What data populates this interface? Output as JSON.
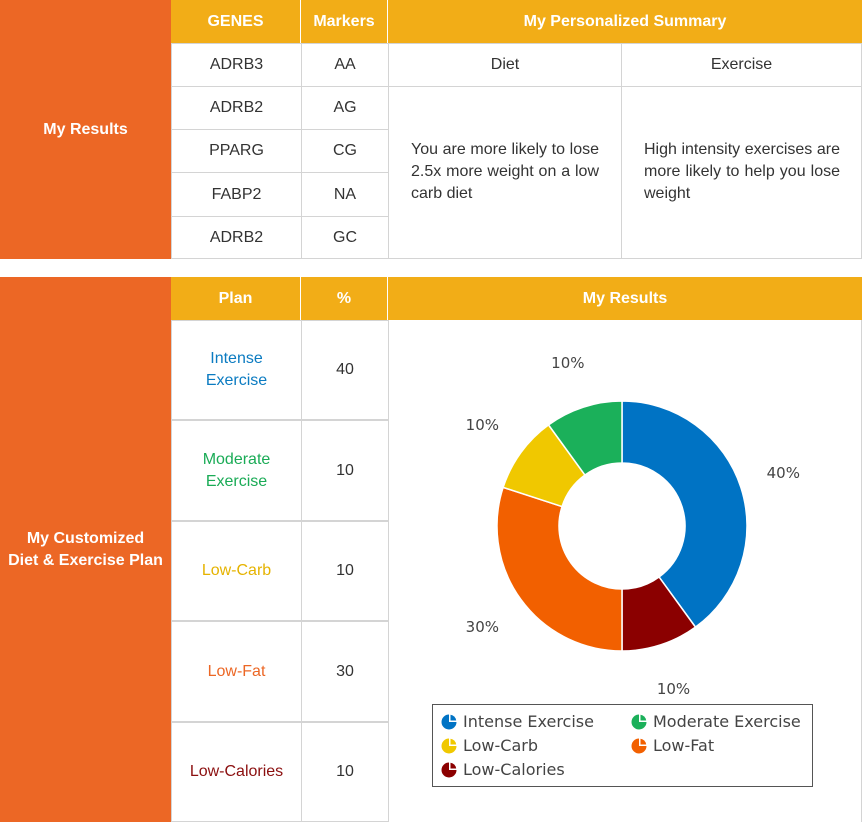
{
  "section1": {
    "side_label": "My Results",
    "headers": {
      "genes": "GENES",
      "markers": "Markers",
      "summary": "My Personalized Summary"
    },
    "sub_headers": {
      "diet": "Diet",
      "exercise": "Exercise"
    },
    "rows": [
      {
        "gene": "ADRB3",
        "marker": "AA"
      },
      {
        "gene": "ADRB2",
        "marker": "AG"
      },
      {
        "gene": "PPARG",
        "marker": "CG"
      },
      {
        "gene": "FABP2",
        "marker": "NA"
      },
      {
        "gene": "ADRB2",
        "marker": "GC"
      }
    ],
    "diet_text": "You are more likely to lose 2.5x more weight on a low carb diet",
    "exercise_text": "High intensity exercises are more likely to help you lose weight"
  },
  "section2": {
    "side_label_line1": "My Customized",
    "side_label_line2": "Diet & Exercise Plan",
    "headers": {
      "plan": "Plan",
      "percent": "%",
      "results": "My Results"
    },
    "rows": [
      {
        "plan_line1": "Intense",
        "plan_line2": "Exercise",
        "percent": "40",
        "color": "#0b7bc1"
      },
      {
        "plan_line1": "Moderate",
        "plan_line2": "Exercise",
        "percent": "10",
        "color": "#1aab56"
      },
      {
        "plan_line1": "Low-Carb",
        "plan_line2": "",
        "percent": "10",
        "color": "#e5b300"
      },
      {
        "plan_line1": "Low-Fat",
        "plan_line2": "",
        "percent": "30",
        "color": "#ec6725"
      },
      {
        "plan_line1": "Low-Calories",
        "plan_line2": "",
        "percent": "10",
        "color": "#8b0f0f"
      }
    ]
  },
  "chart_data": {
    "type": "pie",
    "variant": "donut",
    "categories": [
      "Intense Exercise",
      "Low-Calories",
      "Low-Fat",
      "Low-Carb",
      "Moderate Exercise"
    ],
    "values": [
      40,
      10,
      30,
      10,
      10
    ],
    "labels": [
      "40%",
      "10%",
      "30%",
      "10%",
      "10%"
    ],
    "colors": [
      "#0073c4",
      "#8b0000",
      "#f26000",
      "#f0c800",
      "#1bb05a"
    ],
    "legend": {
      "placement": "bottom",
      "entries": [
        {
          "name": "Intense Exercise",
          "color": "#0073c4"
        },
        {
          "name": "Moderate Exercise",
          "color": "#1bb05a"
        },
        {
          "name": "Low-Carb",
          "color": "#f0c800"
        },
        {
          "name": "Low-Fat",
          "color": "#f26000"
        },
        {
          "name": "Low-Calories",
          "color": "#8b0000"
        }
      ]
    }
  }
}
